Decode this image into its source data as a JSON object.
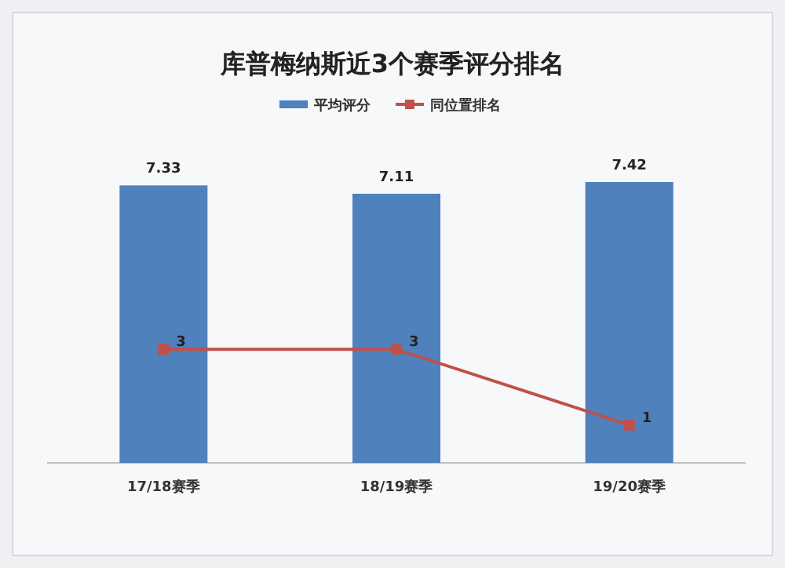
{
  "chart_data": {
    "type": "bar",
    "title": "库普梅纳斯近3个赛季评分排名",
    "categories": [
      "17/18赛季",
      "18/19赛季",
      "19/20赛季"
    ],
    "series": [
      {
        "name": "平均评分",
        "color": "#4f81bd",
        "values": [
          7.33,
          7.11,
          7.42
        ]
      },
      {
        "name": "同位置排名",
        "type": "line",
        "color": "#c0504d",
        "marker": "square",
        "values": [
          3,
          3,
          1
        ]
      }
    ],
    "tick_labels": "x",
    "data_labels": true,
    "legend": "top",
    "grid": false
  }
}
